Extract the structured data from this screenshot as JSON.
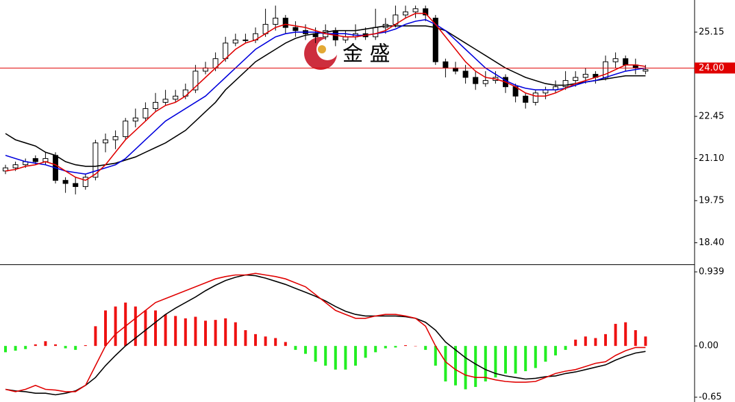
{
  "chart_data": [
    {
      "type": "candlestick",
      "ylim": [
        17.73,
        26.18
      ],
      "yticks": [
        25.15,
        22.45,
        {
          "value": 21.1,
          "label": "21.10"
        },
        19.75,
        {
          "value": 18.4,
          "label": "18.40"
        }
      ],
      "current_price": {
        "value": 24,
        "label": "24.00"
      },
      "current_color": "#e00000",
      "watermark": "金 盛",
      "up_color": "#ffffff",
      "down_color": "#000000",
      "ohlc": [
        [
          20.7,
          20.9,
          20.6,
          20.8
        ],
        [
          20.8,
          21.0,
          20.7,
          20.9
        ],
        [
          20.9,
          21.1,
          20.8,
          21.0
        ],
        [
          21.1,
          21.2,
          20.9,
          21.0
        ],
        [
          21.0,
          21.3,
          20.9,
          21.1
        ],
        [
          21.2,
          21.3,
          20.3,
          20.4
        ],
        [
          20.4,
          20.5,
          20.0,
          20.3
        ],
        [
          20.3,
          20.5,
          19.95,
          20.2
        ],
        [
          20.2,
          20.6,
          20.1,
          20.5
        ],
        [
          20.5,
          21.7,
          20.4,
          21.6
        ],
        [
          21.6,
          21.9,
          21.3,
          21.7
        ],
        [
          21.7,
          22.0,
          21.4,
          21.8
        ],
        [
          21.8,
          22.4,
          21.7,
          22.3
        ],
        [
          22.3,
          22.7,
          22.1,
          22.4
        ],
        [
          22.4,
          22.9,
          22.3,
          22.7
        ],
        [
          22.7,
          23.2,
          22.6,
          22.9
        ],
        [
          22.9,
          23.3,
          22.8,
          23.0
        ],
        [
          23.0,
          23.3,
          22.9,
          23.1
        ],
        [
          23.1,
          23.5,
          23.0,
          23.3
        ],
        [
          23.3,
          24.1,
          23.2,
          23.9
        ],
        [
          23.9,
          24.2,
          23.8,
          24.0
        ],
        [
          24.0,
          24.5,
          23.9,
          24.3
        ],
        [
          24.3,
          25.0,
          24.2,
          24.8
        ],
        [
          24.8,
          25.1,
          24.7,
          24.9
        ],
        [
          24.9,
          25.1,
          24.8,
          24.9
        ],
        [
          24.9,
          25.3,
          24.8,
          25.1
        ],
        [
          25.1,
          25.9,
          25.0,
          25.4
        ],
        [
          25.4,
          26.0,
          25.2,
          25.6
        ],
        [
          25.6,
          25.7,
          25.1,
          25.3
        ],
        [
          25.3,
          25.5,
          25.0,
          25.2
        ],
        [
          25.2,
          25.4,
          24.9,
          25.1
        ],
        [
          25.1,
          25.3,
          24.8,
          25.0
        ],
        [
          25.0,
          25.4,
          24.9,
          25.2
        ],
        [
          25.2,
          25.3,
          24.7,
          24.9
        ],
        [
          24.9,
          25.2,
          24.8,
          25.0
        ],
        [
          25.0,
          25.4,
          24.9,
          25.1
        ],
        [
          25.1,
          25.3,
          24.9,
          25.0
        ],
        [
          25.0,
          25.9,
          24.9,
          25.3
        ],
        [
          25.3,
          25.6,
          25.1,
          25.4
        ],
        [
          25.4,
          26.0,
          25.3,
          25.7
        ],
        [
          25.7,
          26.0,
          25.6,
          25.8
        ],
        [
          25.8,
          26.0,
          25.6,
          25.9
        ],
        [
          25.9,
          26.0,
          25.5,
          25.7
        ],
        [
          25.6,
          25.7,
          24.1,
          24.2
        ],
        [
          24.2,
          24.3,
          23.7,
          24.0
        ],
        [
          24.0,
          24.2,
          23.8,
          23.9
        ],
        [
          23.9,
          24.1,
          23.5,
          23.7
        ],
        [
          23.7,
          23.9,
          23.3,
          23.5
        ],
        [
          23.5,
          23.9,
          23.4,
          23.6
        ],
        [
          23.6,
          23.9,
          23.5,
          23.7
        ],
        [
          23.7,
          23.8,
          23.2,
          23.4
        ],
        [
          23.4,
          23.5,
          22.9,
          23.1
        ],
        [
          23.1,
          23.2,
          22.7,
          22.9
        ],
        [
          22.9,
          23.3,
          22.8,
          23.2
        ],
        [
          23.2,
          23.4,
          23.0,
          23.3
        ],
        [
          23.3,
          23.6,
          23.2,
          23.4
        ],
        [
          23.4,
          23.9,
          23.3,
          23.6
        ],
        [
          23.6,
          23.9,
          23.4,
          23.7
        ],
        [
          23.7,
          24.0,
          23.5,
          23.8
        ],
        [
          23.8,
          23.9,
          23.5,
          23.7
        ],
        [
          23.7,
          24.4,
          23.6,
          24.2
        ],
        [
          24.2,
          24.5,
          24.0,
          24.3
        ],
        [
          24.3,
          24.4,
          23.9,
          24.1
        ],
        [
          24.1,
          24.3,
          23.8,
          24.0
        ],
        [
          23.9,
          24.1,
          23.8,
          23.95
        ]
      ],
      "series": [
        {
          "color": "#000000",
          "values": [
            21.9,
            21.7,
            21.6,
            21.5,
            21.3,
            21.2,
            21.0,
            20.9,
            20.85,
            20.85,
            20.9,
            20.95,
            21.05,
            21.15,
            21.3,
            21.45,
            21.6,
            21.8,
            22.0,
            22.3,
            22.6,
            22.9,
            23.3,
            23.6,
            23.9,
            24.2,
            24.4,
            24.6,
            24.8,
            24.95,
            25.05,
            25.1,
            25.15,
            25.2,
            25.2,
            25.2,
            25.25,
            25.3,
            25.35,
            25.35,
            25.35,
            25.35,
            25.35,
            25.3,
            25.2,
            25.0,
            24.8,
            24.6,
            24.4,
            24.2,
            24.0,
            23.85,
            23.7,
            23.6,
            23.5,
            23.45,
            23.45,
            23.5,
            23.55,
            23.6,
            23.65,
            23.7,
            23.75,
            23.75,
            23.75
          ]
        },
        {
          "color": "#0000dd",
          "values": [
            21.2,
            21.1,
            21.0,
            20.95,
            20.9,
            20.8,
            20.7,
            20.65,
            20.6,
            20.7,
            20.8,
            20.9,
            21.1,
            21.4,
            21.7,
            22.0,
            22.3,
            22.5,
            22.7,
            22.9,
            23.1,
            23.4,
            23.7,
            24.0,
            24.3,
            24.6,
            24.8,
            25.0,
            25.1,
            25.15,
            25.15,
            25.15,
            25.1,
            25.1,
            25.1,
            25.05,
            25.05,
            25.1,
            25.15,
            25.25,
            25.4,
            25.5,
            25.55,
            25.4,
            25.2,
            24.9,
            24.6,
            24.3,
            24.0,
            23.8,
            23.6,
            23.45,
            23.35,
            23.3,
            23.3,
            23.3,
            23.35,
            23.45,
            23.55,
            23.6,
            23.7,
            23.8,
            23.9,
            23.95,
            24.0
          ]
        },
        {
          "color": "#e00000",
          "values": [
            20.7,
            20.75,
            20.85,
            20.9,
            21.0,
            20.9,
            20.7,
            20.5,
            20.4,
            20.6,
            20.9,
            21.3,
            21.7,
            22.0,
            22.3,
            22.6,
            22.8,
            22.9,
            23.1,
            23.4,
            23.7,
            24.0,
            24.3,
            24.6,
            24.8,
            24.9,
            25.1,
            25.3,
            25.4,
            25.35,
            25.3,
            25.2,
            25.1,
            25.05,
            25.0,
            25.0,
            25.05,
            25.1,
            25.2,
            25.4,
            25.6,
            25.75,
            25.75,
            25.4,
            25.0,
            24.6,
            24.2,
            23.9,
            23.7,
            23.65,
            23.55,
            23.4,
            23.2,
            23.1,
            23.1,
            23.2,
            23.35,
            23.5,
            23.6,
            23.7,
            23.8,
            23.95,
            24.1,
            24.1,
            24.05
          ]
        }
      ]
    },
    {
      "type": "macd",
      "ylim": [
        -0.65,
        0.939
      ],
      "yticks": [
        0.939,
        {
          "value": 0,
          "label": "0.00"
        },
        -0.65
      ],
      "up_color": "#ee1111",
      "down_color": "#22ee22",
      "histogram": [
        -0.08,
        -0.06,
        -0.04,
        0.02,
        0.06,
        0.02,
        -0.03,
        -0.05,
        0.01,
        0.25,
        0.45,
        0.5,
        0.55,
        0.5,
        0.45,
        0.45,
        0.4,
        0.38,
        0.35,
        0.37,
        0.32,
        0.33,
        0.35,
        0.3,
        0.2,
        0.15,
        0.12,
        0.1,
        0.05,
        -0.05,
        -0.1,
        -0.2,
        -0.25,
        -0.3,
        -0.3,
        -0.25,
        -0.15,
        -0.08,
        -0.03,
        -0.02,
        0.01,
        0.0,
        -0.05,
        -0.25,
        -0.45,
        -0.5,
        -0.55,
        -0.52,
        -0.45,
        -0.4,
        -0.35,
        -0.35,
        -0.32,
        -0.28,
        -0.2,
        -0.12,
        -0.05,
        0.08,
        0.12,
        0.1,
        0.15,
        0.28,
        0.3,
        0.2,
        0.12
      ],
      "series": [
        {
          "color": "#000000",
          "values": [
            -0.55,
            -0.57,
            -0.58,
            -0.6,
            -0.6,
            -0.62,
            -0.6,
            -0.57,
            -0.5,
            -0.4,
            -0.25,
            -0.12,
            0.0,
            0.1,
            0.2,
            0.3,
            0.4,
            0.48,
            0.55,
            0.62,
            0.7,
            0.77,
            0.83,
            0.87,
            0.9,
            0.89,
            0.86,
            0.82,
            0.78,
            0.73,
            0.68,
            0.63,
            0.57,
            0.5,
            0.44,
            0.4,
            0.38,
            0.38,
            0.38,
            0.38,
            0.37,
            0.35,
            0.3,
            0.2,
            0.05,
            -0.05,
            -0.15,
            -0.23,
            -0.3,
            -0.35,
            -0.38,
            -0.4,
            -0.42,
            -0.41,
            -0.39,
            -0.38,
            -0.35,
            -0.33,
            -0.3,
            -0.27,
            -0.24,
            -0.18,
            -0.13,
            -0.09,
            -0.07
          ]
        },
        {
          "color": "#e00000",
          "values": [
            -0.55,
            -0.58,
            -0.55,
            -0.5,
            -0.55,
            -0.56,
            -0.58,
            -0.58,
            -0.5,
            -0.25,
            0.0,
            0.15,
            0.25,
            0.35,
            0.45,
            0.55,
            0.6,
            0.65,
            0.7,
            0.75,
            0.8,
            0.85,
            0.88,
            0.9,
            0.9,
            0.92,
            0.9,
            0.88,
            0.85,
            0.8,
            0.75,
            0.65,
            0.55,
            0.45,
            0.4,
            0.35,
            0.35,
            0.38,
            0.4,
            0.4,
            0.38,
            0.35,
            0.25,
            0.0,
            -0.2,
            -0.3,
            -0.37,
            -0.4,
            -0.4,
            -0.43,
            -0.45,
            -0.46,
            -0.46,
            -0.45,
            -0.4,
            -0.35,
            -0.32,
            -0.3,
            -0.26,
            -0.22,
            -0.2,
            -0.12,
            -0.06,
            -0.02,
            -0.02
          ]
        }
      ]
    }
  ]
}
